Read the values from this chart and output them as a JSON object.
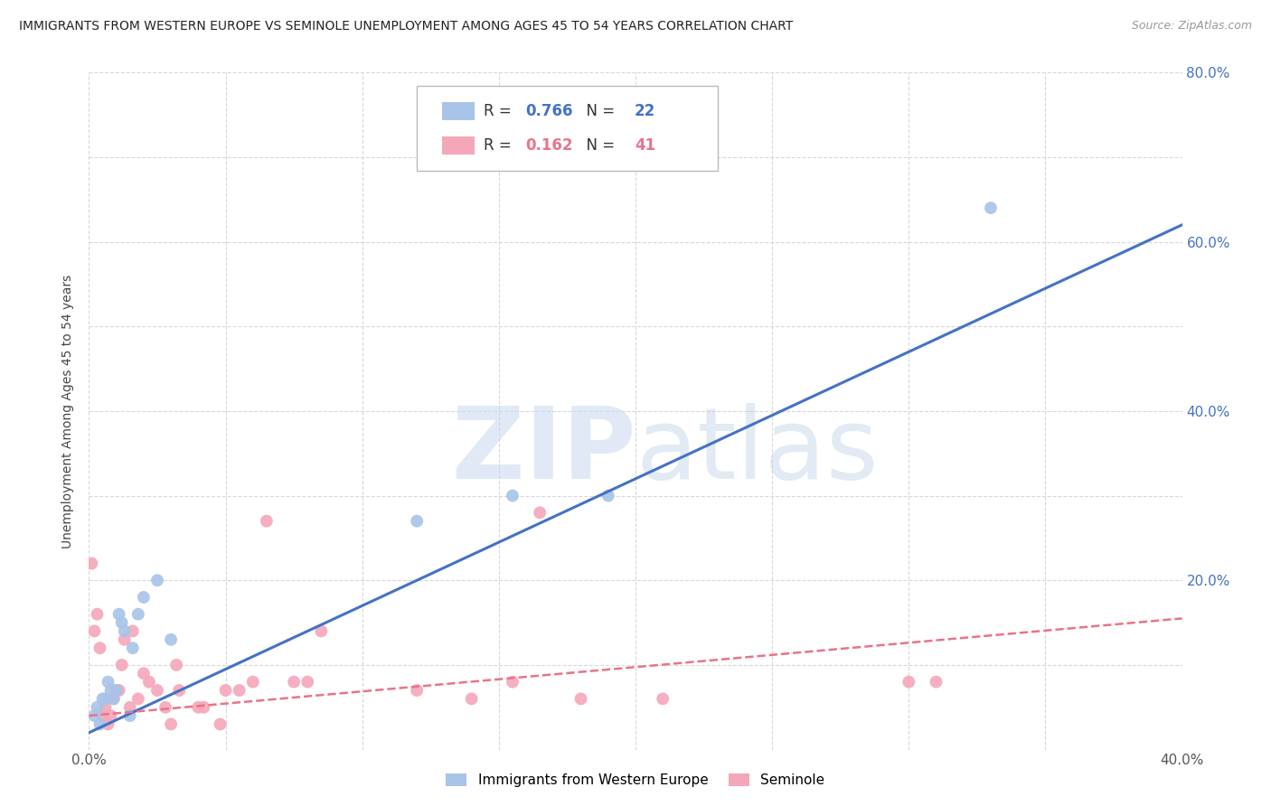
{
  "title": "IMMIGRANTS FROM WESTERN EUROPE VS SEMINOLE UNEMPLOYMENT AMONG AGES 45 TO 54 YEARS CORRELATION CHART",
  "source": "Source: ZipAtlas.com",
  "ylabel": "Unemployment Among Ages 45 to 54 years",
  "xmin": 0.0,
  "xmax": 0.4,
  "ymin": 0.0,
  "ymax": 0.8,
  "xtick_vals": [
    0.0,
    0.05,
    0.1,
    0.15,
    0.2,
    0.25,
    0.3,
    0.35,
    0.4
  ],
  "xtick_labels": [
    "0.0%",
    "",
    "",
    "",
    "",
    "",
    "",
    "",
    "40.0%"
  ],
  "ytick_vals": [
    0.0,
    0.1,
    0.2,
    0.3,
    0.4,
    0.5,
    0.6,
    0.7,
    0.8
  ],
  "ytick_labels_right": [
    "",
    "",
    "20.0%",
    "",
    "40.0%",
    "",
    "60.0%",
    "",
    "80.0%"
  ],
  "blue_R": 0.766,
  "blue_N": 22,
  "pink_R": 0.162,
  "pink_N": 41,
  "blue_color": "#a8c4e8",
  "pink_color": "#f4a7b9",
  "blue_line_color": "#4472c4",
  "pink_line_color": "#e8748a",
  "legend1_label": "Immigrants from Western Europe",
  "legend2_label": "Seminole",
  "blue_line_x": [
    0.0,
    0.4
  ],
  "blue_line_y": [
    0.02,
    0.62
  ],
  "pink_line_x": [
    0.0,
    0.4
  ],
  "pink_line_y": [
    0.04,
    0.155
  ],
  "blue_scatter_x": [
    0.002,
    0.003,
    0.004,
    0.005,
    0.006,
    0.007,
    0.008,
    0.009,
    0.01,
    0.011,
    0.012,
    0.013,
    0.015,
    0.016,
    0.018,
    0.02,
    0.025,
    0.03,
    0.12,
    0.155,
    0.19,
    0.33
  ],
  "blue_scatter_y": [
    0.04,
    0.05,
    0.03,
    0.06,
    0.06,
    0.08,
    0.07,
    0.06,
    0.07,
    0.16,
    0.15,
    0.14,
    0.04,
    0.12,
    0.16,
    0.18,
    0.2,
    0.13,
    0.27,
    0.3,
    0.3,
    0.64
  ],
  "pink_scatter_x": [
    0.001,
    0.002,
    0.003,
    0.004,
    0.005,
    0.006,
    0.007,
    0.008,
    0.009,
    0.01,
    0.011,
    0.012,
    0.013,
    0.015,
    0.016,
    0.018,
    0.02,
    0.022,
    0.025,
    0.028,
    0.03,
    0.032,
    0.033,
    0.04,
    0.042,
    0.048,
    0.05,
    0.055,
    0.06,
    0.065,
    0.075,
    0.08,
    0.085,
    0.12,
    0.14,
    0.155,
    0.165,
    0.18,
    0.21,
    0.3,
    0.31
  ],
  "pink_scatter_y": [
    0.22,
    0.14,
    0.16,
    0.12,
    0.04,
    0.05,
    0.03,
    0.04,
    0.06,
    0.07,
    0.07,
    0.1,
    0.13,
    0.05,
    0.14,
    0.06,
    0.09,
    0.08,
    0.07,
    0.05,
    0.03,
    0.1,
    0.07,
    0.05,
    0.05,
    0.03,
    0.07,
    0.07,
    0.08,
    0.27,
    0.08,
    0.08,
    0.14,
    0.07,
    0.06,
    0.08,
    0.28,
    0.06,
    0.06,
    0.08,
    0.08
  ],
  "watermark_zip": "ZIP",
  "watermark_atlas": "atlas",
  "background_color": "#ffffff",
  "grid_color": "#d8d8d8"
}
